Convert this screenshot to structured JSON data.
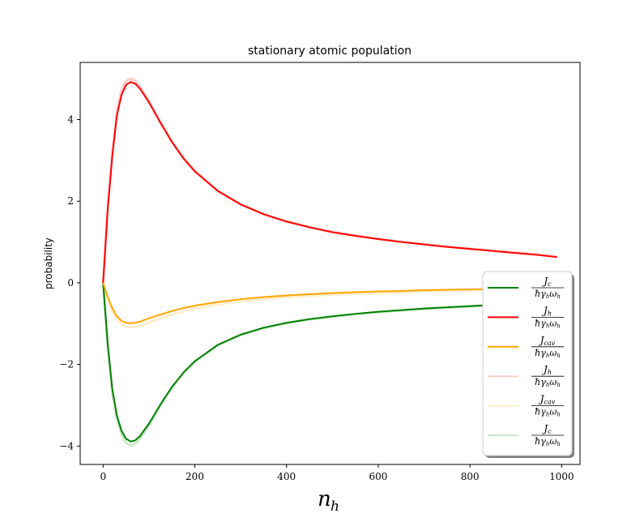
{
  "chart_data": {
    "type": "line",
    "title": "stationary atomic population",
    "xlabel": "n_h",
    "ylabel": "probability",
    "xlim": [
      -50,
      1040
    ],
    "ylim": [
      -4.45,
      5.4
    ],
    "xticks": [
      0,
      200,
      400,
      600,
      800,
      1000
    ],
    "yticks": [
      -4,
      -2,
      0,
      2,
      4
    ],
    "xtick_labels": [
      "0",
      "200",
      "400",
      "600",
      "800",
      "1000"
    ],
    "ytick_labels": [
      "−4",
      "−2",
      "0",
      "2",
      "4"
    ],
    "grid": false,
    "legend_position": "lower-right",
    "x": [
      0,
      10,
      20,
      30,
      40,
      50,
      60,
      70,
      80,
      100,
      125,
      150,
      175,
      200,
      250,
      300,
      350,
      400,
      450,
      500,
      550,
      600,
      650,
      700,
      750,
      800,
      850,
      900,
      950,
      990
    ],
    "series": [
      {
        "name": "J_c / (ħ γ_h ω_h)",
        "color": "#008000",
        "alpha": 1,
        "values": [
          0,
          -1.5,
          -2.6,
          -3.25,
          -3.62,
          -3.82,
          -3.89,
          -3.86,
          -3.76,
          -3.45,
          -2.98,
          -2.55,
          -2.2,
          -1.92,
          -1.52,
          -1.27,
          -1.1,
          -0.98,
          -0.89,
          -0.82,
          -0.76,
          -0.71,
          -0.67,
          -0.63,
          -0.6,
          -0.57,
          -0.54,
          -0.51,
          -0.49,
          -0.47
        ]
      },
      {
        "name": "J_h / (ħ γ_h ω_h)",
        "color": "#ff0000",
        "alpha": 1,
        "values": [
          0,
          1.8,
          3.1,
          4.1,
          4.6,
          4.85,
          4.92,
          4.88,
          4.76,
          4.42,
          3.92,
          3.45,
          3.05,
          2.73,
          2.25,
          1.92,
          1.68,
          1.5,
          1.36,
          1.24,
          1.15,
          1.07,
          1.0,
          0.94,
          0.88,
          0.83,
          0.78,
          0.73,
          0.68,
          0.63
        ]
      },
      {
        "name": "J_cav / (ħ γ_h ω_h)",
        "color": "#ffa500",
        "alpha": 1,
        "values": [
          0,
          -0.35,
          -0.62,
          -0.82,
          -0.93,
          -0.98,
          -0.99,
          -0.98,
          -0.95,
          -0.87,
          -0.78,
          -0.69,
          -0.62,
          -0.56,
          -0.47,
          -0.4,
          -0.35,
          -0.31,
          -0.28,
          -0.25,
          -0.23,
          -0.21,
          -0.2,
          -0.18,
          -0.17,
          -0.16,
          -0.15,
          -0.14,
          -0.13,
          -0.12
        ]
      },
      {
        "name": "J_h / (ħ γ_h ω_h)",
        "color": "#ff0000",
        "alpha": 0.2,
        "values": [
          0,
          1.85,
          3.2,
          4.2,
          4.72,
          4.95,
          5.0,
          4.95,
          4.82,
          4.46,
          3.95,
          3.47,
          3.07,
          2.75,
          2.26,
          1.93,
          1.69,
          1.51,
          1.37,
          1.25,
          1.16,
          1.08,
          1.01,
          0.95,
          0.89,
          0.84,
          0.79,
          0.74,
          0.69,
          0.64
        ]
      },
      {
        "name": "J_cav / (ħ γ_h ω_h)",
        "color": "#ffa500",
        "alpha": 0.2,
        "values": [
          0,
          -0.4,
          -0.7,
          -0.9,
          -1.02,
          -1.08,
          -1.09,
          -1.08,
          -1.05,
          -0.97,
          -0.87,
          -0.78,
          -0.7,
          -0.63,
          -0.53,
          -0.45,
          -0.4,
          -0.35,
          -0.32,
          -0.29,
          -0.27,
          -0.25,
          -0.23,
          -0.21,
          -0.2,
          -0.19,
          -0.18,
          -0.17,
          -0.16,
          -0.15
        ]
      },
      {
        "name": "J_c / (ħ γ_h ω_h)",
        "color": "#008000",
        "alpha": 0.2,
        "values": [
          0,
          -1.55,
          -2.7,
          -3.35,
          -3.72,
          -3.92,
          -3.98,
          -3.94,
          -3.83,
          -3.5,
          -3.02,
          -2.58,
          -2.22,
          -1.94,
          -1.53,
          -1.28,
          -1.11,
          -0.99,
          -0.9,
          -0.83,
          -0.77,
          -0.72,
          -0.68,
          -0.64,
          -0.61,
          -0.58,
          -0.55,
          -0.52,
          -0.5,
          -0.48
        ]
      }
    ],
    "legend": [
      {
        "num": "J",
        "num_sub": "c",
        "den": "ħγ",
        "den_sub1": "h",
        "den_mid": "ω",
        "den_sub2": "h",
        "color": "#008000",
        "alpha": 1
      },
      {
        "num": "J",
        "num_sub": "h",
        "den": "ħγ",
        "den_sub1": "h",
        "den_mid": "ω",
        "den_sub2": "h",
        "color": "#ff0000",
        "alpha": 1
      },
      {
        "num": "J",
        "num_sub": "cav",
        "den": "ħγ",
        "den_sub1": "h",
        "den_mid": "ω",
        "den_sub2": "h",
        "color": "#ffa500",
        "alpha": 1
      },
      {
        "num": "J",
        "num_sub": "h",
        "den": "ħγ",
        "den_sub1": "h",
        "den_mid": "ω",
        "den_sub2": "h",
        "color": "#ff0000",
        "alpha": 0.2
      },
      {
        "num": "J",
        "num_sub": "cav",
        "den": "ħγ",
        "den_sub1": "h",
        "den_mid": "ω",
        "den_sub2": "h",
        "color": "#ffa500",
        "alpha": 0.2
      },
      {
        "num": "J",
        "num_sub": "c",
        "den": "ħγ",
        "den_sub1": "h",
        "den_mid": "ω",
        "den_sub2": "h",
        "color": "#008000",
        "alpha": 0.2
      }
    ]
  }
}
